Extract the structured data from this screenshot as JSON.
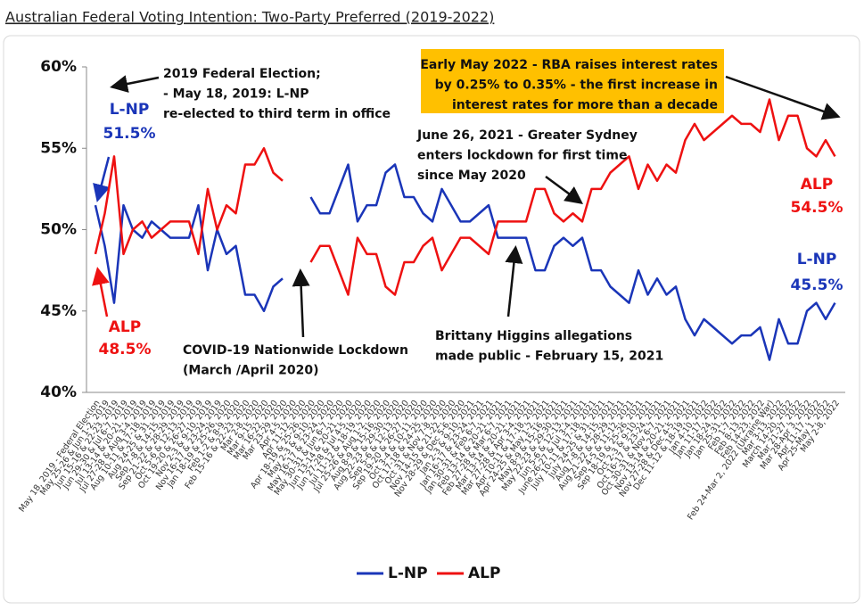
{
  "chart_data": {
    "type": "line",
    "title": "Australian Federal Voting Intention: Two-Party Preferred (2019-2022)",
    "categories": [
      "May 18, 2019 - Federal Election",
      "May 25-26 & Jun 1-2, 2019",
      "Jun 15-16 & 22-23, 2019",
      "Jun 29-30 & Jul 6-7, 2019",
      "Jul 13-14 & 20-21, 2019",
      "Jul 27-28 & Aug 3-4, 2019",
      "Aug 10-11 & 17-18, 2019",
      "Aug 24-25 & 31, 2019",
      "Sep 7-8 & 14-15, 2019",
      "Sep 21-22 & 28-29, 2019",
      "Oct 5-6 & 12-13, 2019",
      "Oct 19-20 & 26-27, 2019",
      "Nov 2-3 & 9-10, 2019",
      "Nov 16-17 & 23-24, 2019",
      "Jan 18-19 & 25-26, 2020",
      "Feb 1-2 & 8-9, 2020",
      "Feb 15-16 & 22-23, 2020",
      "Mar 2-8, 2020",
      "Mar 9-15, 2020",
      "Mar 16-22, 2020",
      "Mar 23-29, 2020",
      "Apr 4-5, 2020",
      "Apr 11-12, 2020",
      "Apr 18-19 & 25-26, 2020",
      "May 2-3 & 9-10, 2020",
      "May 16-17 & 23-24, 2020",
      "May 30-31 & Jun 6-7, 2020",
      "Jun 13-14 & 20-21, 2020",
      "Jun 27-28 & Jul 4-5, 2020",
      "Jul 11-12 & 18-19, 2020",
      "Jul 25-26 & Aug 1-2, 2020",
      "Aug 8-9 & 15-16, 2020",
      "Aug 22-23 & 29-30, 2020",
      "Sep 5-6 & 12-13, 2020",
      "Sep 19-20 & 26-27, 2020",
      "Oct 3-4 & 10-11, 2020",
      "Oct 17-18 & 24-25, 2020",
      "Oct 31 & Nov 7-8, 2020",
      "Nov 14-15 & 21-22, 2020",
      "Nov 28-29 & Dec 5-6, 2020",
      "Jan 2-3 & 9-10, 2021",
      "Jan 16-17 & 23-24, 2021",
      "Jan 30-31 & Feb 6-7, 2021",
      "Feb 13-14 & 20-21, 2021",
      "Feb 27-28 & Mar 6-7, 2021",
      "Mar 13-14 & 20-21, 2021",
      "Mar 27-28 & Apr 3-4, 2021",
      "Apr 10-11 & 17-18, 2021",
      "Apr 24-25 & May 1-2, 2021",
      "May 8-9 & 15-16, 2021",
      "May 22-23 & 29-30, 2021",
      "Jun 5-6 & 12-13, 2021",
      "June 26-27 & Jul 3-4, 2021",
      "July 10-11 & 17-18, 2021",
      "July 24-25 & 31, 2021",
      "Aug 7-8 & 14-15, 2021",
      "Aug 21-22 & 28-29, 2021",
      "Sep 4-5 & 11-12, 2021",
      "Sep 18-19 & 25-26, 2021",
      "Oct 2-3 & 9-10, 2021",
      "Oct 16-17 & 23-24, 2021",
      "Oct 30-31 & Nov 6-7, 2021",
      "Nov 13-14 & 20-21, 2021",
      "Nov 27-28 & Dec 4-5, 2021",
      "Dec 11-12 & 18-19, 2021",
      "Jan 4-10, 2022",
      "Jan 11-17, 2022",
      "Jan 18-24, 2022",
      "Jan 25-31, 2022",
      "Feb 1-7, 2022",
      "Feb 8-13, 2022",
      "Feb 14-23, 2022",
      "Feb 24-Mar 2, 2022 (Ukraine War)",
      "Mar 3-13, 2022",
      "March 14-20, 2022",
      "Mar 21-27, 2022",
      "Mar 28-Apr 3, 2022",
      "Apr 11-17, 2022",
      "Apr 25-May 1, 2022",
      "May 2-8, 2022"
    ],
    "series": [
      {
        "name": "L-NP",
        "color": "#1a35b8",
        "values": [
          51.5,
          49,
          45.5,
          51.5,
          50,
          49.5,
          50.5,
          50,
          49.5,
          49.5,
          49.5,
          51.5,
          47.5,
          50,
          48.5,
          49,
          46,
          46,
          45,
          46.5,
          47,
          null,
          null,
          52,
          51,
          51,
          52.5,
          54,
          50.5,
          51.5,
          51.5,
          53.5,
          54,
          52,
          52,
          51,
          50.5,
          52.5,
          51.5,
          50.5,
          50.5,
          51,
          51.5,
          49.5,
          49.5,
          49.5,
          49.5,
          47.5,
          47.5,
          49,
          49.5,
          49,
          49.5,
          47.5,
          47.5,
          46.5,
          46,
          45.5,
          47.5,
          46,
          47,
          46,
          46.5,
          44.5,
          43.5,
          44.5,
          44,
          43.5,
          43,
          43.5,
          43.5,
          44,
          42,
          44.5,
          43,
          43,
          45,
          45.5,
          44.5,
          45.5
        ],
        "value_labels": [
          "51.5%",
          null,
          null,
          null,
          null,
          null,
          null,
          null,
          null,
          null,
          null,
          null,
          null,
          null,
          null,
          null,
          null,
          null,
          null,
          null,
          null,
          null,
          null,
          null,
          null,
          null,
          null,
          null,
          null,
          null,
          null,
          null,
          null,
          null,
          null,
          null,
          null,
          null,
          null,
          null,
          null,
          null,
          null,
          null,
          null,
          null,
          null,
          null,
          null,
          null,
          null,
          null,
          null,
          null,
          null,
          null,
          null,
          null,
          null,
          null,
          null,
          null,
          null,
          null,
          null,
          null,
          null,
          null,
          null,
          null,
          null,
          null,
          null,
          null,
          null,
          null,
          null,
          null,
          null,
          "45.5%"
        ]
      },
      {
        "name": "ALP",
        "color": "#ee1111",
        "values": [
          48.5,
          51,
          54.5,
          48.5,
          50,
          50.5,
          49.5,
          50,
          50.5,
          50.5,
          50.5,
          48.5,
          52.5,
          50,
          51.5,
          51,
          54,
          54,
          55,
          53.5,
          53,
          null,
          null,
          48,
          49,
          49,
          47.5,
          46,
          49.5,
          48.5,
          48.5,
          46.5,
          46,
          48,
          48,
          49,
          49.5,
          47.5,
          48.5,
          49.5,
          49.5,
          49,
          48.5,
          50.5,
          50.5,
          50.5,
          50.5,
          52.5,
          52.5,
          51,
          50.5,
          51,
          50.5,
          52.5,
          52.5,
          53.5,
          54,
          54.5,
          52.5,
          54,
          53,
          54,
          53.5,
          55.5,
          56.5,
          55.5,
          56,
          56.5,
          57,
          56.5,
          56.5,
          56,
          58,
          55.5,
          57,
          57,
          55,
          54.5,
          55.5,
          54.5
        ],
        "value_labels": [
          "48.5%",
          null,
          null,
          null,
          null,
          null,
          null,
          null,
          null,
          null,
          null,
          null,
          null,
          null,
          null,
          null,
          null,
          null,
          null,
          null,
          null,
          null,
          null,
          null,
          null,
          null,
          null,
          null,
          null,
          null,
          null,
          null,
          null,
          null,
          null,
          null,
          null,
          null,
          null,
          null,
          null,
          null,
          null,
          null,
          null,
          null,
          null,
          null,
          null,
          null,
          null,
          null,
          null,
          null,
          null,
          null,
          null,
          null,
          null,
          null,
          null,
          null,
          null,
          null,
          null,
          null,
          null,
          null,
          null,
          null,
          null,
          null,
          null,
          null,
          null,
          null,
          null,
          null,
          null,
          "54.5%"
        ]
      }
    ],
    "ylim": [
      40,
      60
    ],
    "yticks": [
      {
        "value": 40,
        "label": "40%"
      },
      {
        "value": 45,
        "label": "45%"
      },
      {
        "value": 50,
        "label": "50%"
      },
      {
        "value": 55,
        "label": "55%"
      },
      {
        "value": 60,
        "label": "60%"
      }
    ],
    "grid": false,
    "legend": "bottom",
    "annotations": [
      {
        "lines": [
          "2019 Federal Election;",
          "- May 18, 2019: L-NP",
          "re-elected to third term in office"
        ]
      },
      {
        "lines": [
          "Early May 2022 - RBA raises interest rates",
          "by 0.25% to 0.35% - the first increase in",
          "interest rates for more than a decade"
        ],
        "box_color": "#ffc000"
      },
      {
        "lines": [
          "June 26, 2021 - Greater Sydney",
          "enters lockdown for first time",
          "since May 2020"
        ]
      },
      {
        "lines": [
          "COVID-19 Nationwide Lockdown",
          "(March /April 2020)"
        ]
      },
      {
        "lines": [
          "Brittany Higgins allegations",
          "made public - February 15, 2021"
        ]
      }
    ]
  }
}
